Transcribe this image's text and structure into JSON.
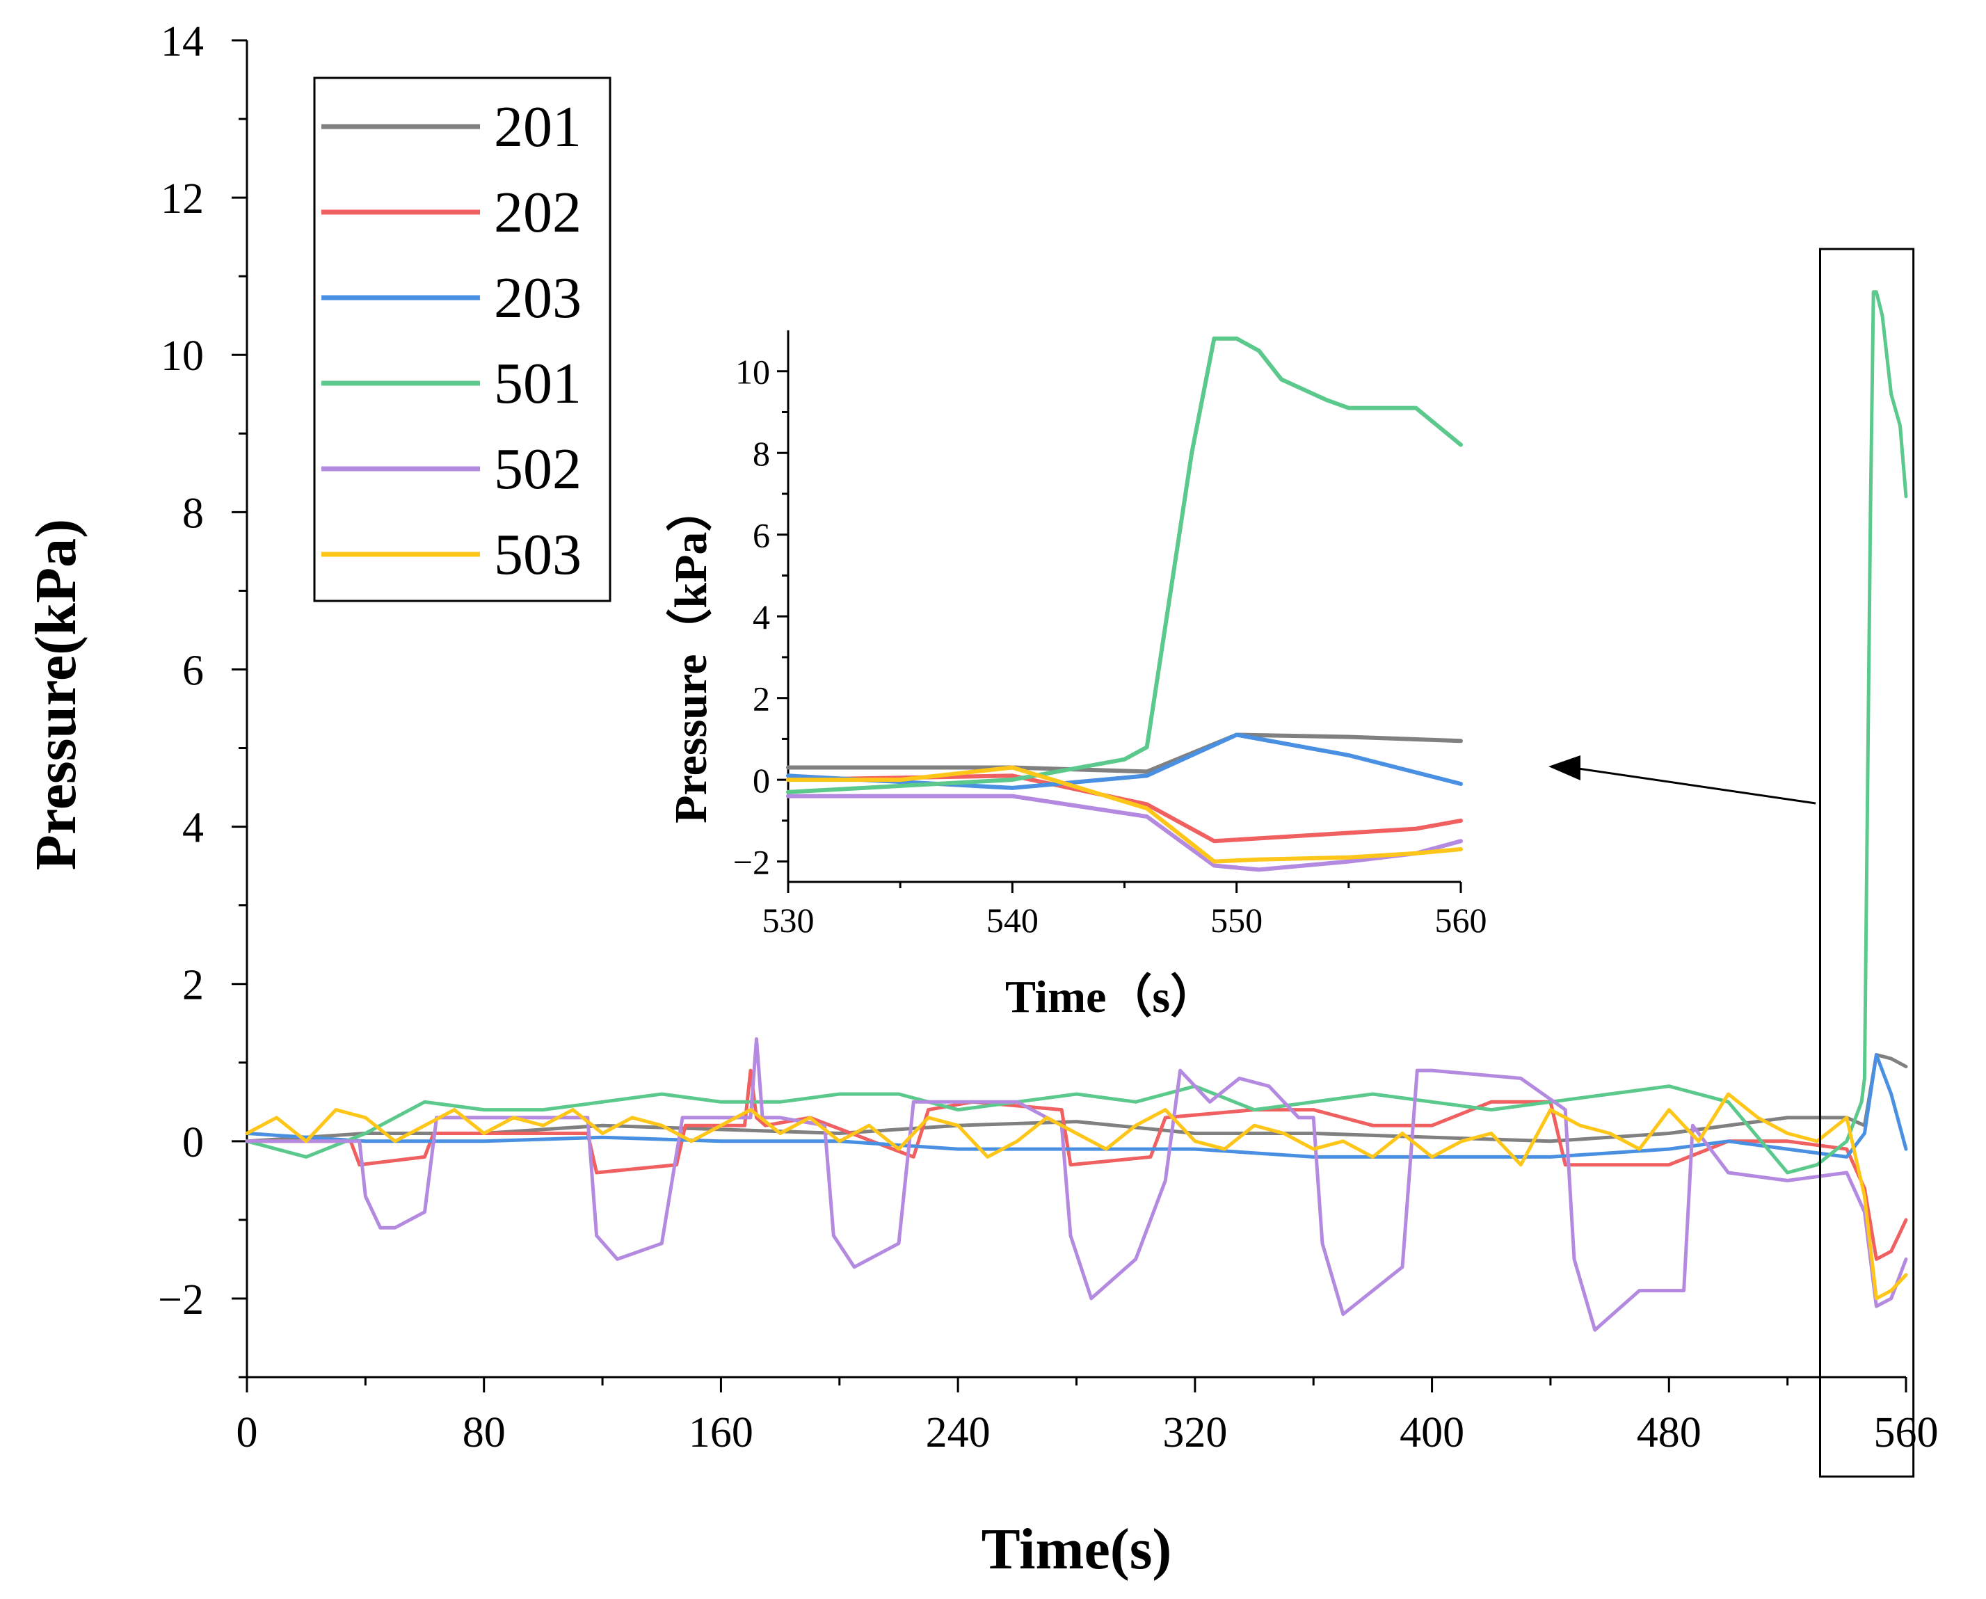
{
  "chart_data": [
    {
      "type": "line",
      "xlabel": "Time(s)",
      "ylabel": "Pressure(kPa)",
      "xlim": [
        0,
        560
      ],
      "ylim": [
        -3,
        14
      ],
      "xticks": [
        "0",
        "80",
        "160",
        "240",
        "320",
        "400",
        "480",
        "560"
      ],
      "yticks": [
        "−2",
        "0",
        "2",
        "4",
        "6",
        "8",
        "10",
        "12",
        "14"
      ],
      "legend_position": "top-left",
      "series": [
        {
          "name": "201",
          "color": "#808080",
          "x": [
            0,
            40,
            80,
            120,
            160,
            200,
            240,
            280,
            320,
            360,
            400,
            440,
            480,
            520,
            540,
            546,
            550,
            555,
            560
          ],
          "y": [
            0.0,
            0.1,
            0.1,
            0.2,
            0.15,
            0.1,
            0.2,
            0.25,
            0.1,
            0.1,
            0.05,
            0.0,
            0.1,
            0.3,
            0.3,
            0.2,
            1.1,
            1.05,
            0.95
          ]
        },
        {
          "name": "202",
          "color": "#f06060",
          "x": [
            0,
            35,
            38,
            60,
            63,
            115,
            118,
            145,
            148,
            168,
            170,
            172,
            175,
            190,
            225,
            230,
            245,
            275,
            278,
            305,
            310,
            340,
            360,
            380,
            400,
            420,
            440,
            445,
            480,
            500,
            520,
            540,
            546,
            550,
            555,
            560
          ],
          "y": [
            0.0,
            0.0,
            -0.3,
            -0.2,
            0.1,
            0.1,
            -0.4,
            -0.3,
            0.2,
            0.2,
            0.9,
            0.3,
            0.2,
            0.3,
            -0.2,
            0.4,
            0.5,
            0.4,
            -0.3,
            -0.2,
            0.3,
            0.4,
            0.4,
            0.2,
            0.2,
            0.5,
            0.5,
            -0.3,
            -0.3,
            0.0,
            0.0,
            -0.1,
            -0.6,
            -1.5,
            -1.4,
            -1.0
          ]
        },
        {
          "name": "203",
          "color": "#4a90e2",
          "x": [
            0,
            40,
            80,
            120,
            160,
            200,
            240,
            280,
            320,
            360,
            400,
            440,
            480,
            500,
            520,
            540,
            546,
            550,
            555,
            560
          ],
          "y": [
            0.1,
            0.0,
            0.0,
            0.05,
            0.0,
            0.0,
            -0.1,
            -0.1,
            -0.1,
            -0.2,
            -0.2,
            -0.2,
            -0.1,
            0.0,
            -0.1,
            -0.2,
            0.1,
            1.1,
            0.6,
            -0.1
          ]
        },
        {
          "name": "501",
          "color": "#5cc98c",
          "x": [
            0,
            20,
            40,
            60,
            80,
            100,
            120,
            140,
            160,
            180,
            200,
            220,
            240,
            260,
            280,
            300,
            320,
            340,
            360,
            380,
            400,
            420,
            440,
            460,
            480,
            500,
            520,
            530,
            540,
            545,
            546,
            548,
            549,
            550,
            552,
            555,
            558,
            560
          ],
          "y": [
            0.0,
            -0.2,
            0.1,
            0.5,
            0.4,
            0.4,
            0.5,
            0.6,
            0.5,
            0.5,
            0.6,
            0.6,
            0.4,
            0.5,
            0.6,
            0.5,
            0.7,
            0.4,
            0.5,
            0.6,
            0.5,
            0.4,
            0.5,
            0.6,
            0.7,
            0.5,
            -0.4,
            -0.3,
            0.0,
            0.5,
            0.8,
            8.0,
            10.8,
            10.8,
            10.5,
            9.5,
            9.1,
            8.2
          ]
        },
        {
          "name": "502",
          "color": "#b48ae0",
          "x": [
            0,
            38,
            40,
            45,
            50,
            60,
            64,
            115,
            118,
            125,
            140,
            147,
            170,
            172,
            174,
            180,
            195,
            198,
            205,
            220,
            225,
            260,
            275,
            278,
            285,
            300,
            310,
            315,
            325,
            335,
            345,
            355,
            360,
            363,
            370,
            390,
            395,
            400,
            430,
            445,
            448,
            455,
            470,
            485,
            488,
            500,
            520,
            540,
            546,
            550,
            555,
            560
          ],
          "y": [
            0.0,
            0.0,
            -0.7,
            -1.1,
            -1.1,
            -0.9,
            0.3,
            0.3,
            -1.2,
            -1.5,
            -1.3,
            0.3,
            0.3,
            1.3,
            0.3,
            0.3,
            0.2,
            -1.2,
            -1.6,
            -1.3,
            0.5,
            0.5,
            0.2,
            -1.2,
            -2.0,
            -1.5,
            -0.5,
            0.9,
            0.5,
            0.8,
            0.7,
            0.3,
            0.3,
            -1.3,
            -2.2,
            -1.6,
            0.9,
            0.9,
            0.8,
            0.4,
            -1.5,
            -2.4,
            -1.9,
            -1.9,
            0.2,
            -0.4,
            -0.5,
            -0.4,
            -0.9,
            -2.1,
            -2.0,
            -1.5
          ]
        },
        {
          "name": "503",
          "color": "#ffc61a",
          "x": [
            0,
            10,
            20,
            30,
            40,
            50,
            60,
            70,
            80,
            90,
            100,
            110,
            120,
            130,
            140,
            150,
            160,
            170,
            180,
            190,
            200,
            210,
            220,
            230,
            240,
            250,
            260,
            270,
            280,
            290,
            300,
            310,
            320,
            330,
            340,
            350,
            360,
            370,
            380,
            390,
            400,
            410,
            420,
            430,
            440,
            450,
            460,
            470,
            480,
            490,
            500,
            510,
            520,
            530,
            540,
            546,
            550,
            555,
            560
          ],
          "y": [
            0.1,
            0.3,
            0.0,
            0.4,
            0.3,
            0.0,
            0.2,
            0.4,
            0.1,
            0.3,
            0.2,
            0.4,
            0.1,
            0.3,
            0.2,
            0.0,
            0.2,
            0.4,
            0.1,
            0.3,
            0.0,
            0.2,
            -0.1,
            0.3,
            0.2,
            -0.2,
            0.0,
            0.3,
            0.1,
            -0.1,
            0.2,
            0.4,
            0.0,
            -0.1,
            0.2,
            0.1,
            -0.1,
            0.0,
            -0.2,
            0.1,
            -0.2,
            0.0,
            0.1,
            -0.3,
            0.4,
            0.2,
            0.1,
            -0.1,
            0.4,
            0.0,
            0.6,
            0.3,
            0.1,
            0.0,
            0.3,
            -0.7,
            -2.0,
            -1.9,
            -1.7
          ]
        }
      ]
    },
    {
      "type": "line",
      "xlabel": "Time（s）",
      "ylabel": "Pressure（kPa）",
      "xlim": [
        530,
        560
      ],
      "ylim": [
        -2.5,
        11
      ],
      "xticks": [
        "530",
        "540",
        "550",
        "560"
      ],
      "yticks": [
        "−2",
        "0",
        "2",
        "4",
        "6",
        "8",
        "10"
      ],
      "series": [
        {
          "name": "201",
          "color": "#808080",
          "x": [
            530,
            540,
            546,
            550,
            555,
            560
          ],
          "y": [
            0.3,
            0.3,
            0.2,
            1.1,
            1.05,
            0.95
          ]
        },
        {
          "name": "202",
          "color": "#f06060",
          "x": [
            530,
            540,
            546,
            549,
            552,
            555,
            558,
            560
          ],
          "y": [
            0.0,
            0.1,
            -0.6,
            -1.5,
            -1.4,
            -1.3,
            -1.2,
            -1.0
          ]
        },
        {
          "name": "203",
          "color": "#4a90e2",
          "x": [
            530,
            540,
            546,
            550,
            555,
            560
          ],
          "y": [
            0.1,
            -0.2,
            0.1,
            1.1,
            0.6,
            -0.1
          ]
        },
        {
          "name": "501",
          "color": "#5cc98c",
          "x": [
            530,
            540,
            545,
            546,
            548,
            549,
            550,
            551,
            552,
            554,
            555,
            558,
            560
          ],
          "y": [
            -0.3,
            0.0,
            0.5,
            0.8,
            8.0,
            10.8,
            10.8,
            10.5,
            9.8,
            9.3,
            9.1,
            9.1,
            8.2
          ]
        },
        {
          "name": "502",
          "color": "#b48ae0",
          "x": [
            530,
            535,
            540,
            546,
            549,
            551,
            555,
            558,
            560
          ],
          "y": [
            -0.4,
            -0.4,
            -0.4,
            -0.9,
            -2.1,
            -2.2,
            -2.0,
            -1.8,
            -1.5
          ]
        },
        {
          "name": "503",
          "color": "#ffc61a",
          "x": [
            530,
            535,
            540,
            546,
            549,
            551,
            555,
            558,
            560
          ],
          "y": [
            0.0,
            0.0,
            0.3,
            -0.7,
            -2.0,
            -1.95,
            -1.9,
            -1.8,
            -1.7
          ]
        }
      ]
    }
  ]
}
